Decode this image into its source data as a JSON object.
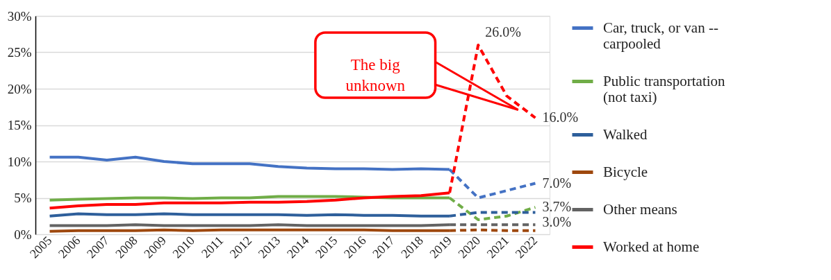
{
  "chart_data": {
    "type": "line",
    "categories": [
      "2005",
      "2006",
      "2007",
      "2008",
      "2009",
      "2010",
      "2011",
      "2012",
      "2013",
      "2014",
      "2015",
      "2016",
      "2017",
      "2018",
      "2019",
      "2020",
      "2021",
      "2022"
    ],
    "ylim": [
      0,
      30
    ],
    "yticks": [
      {
        "value": 0,
        "label": "0%"
      },
      {
        "value": 5,
        "label": "5%"
      },
      {
        "value": 10,
        "label": "10%"
      },
      {
        "value": 15,
        "label": "15%"
      },
      {
        "value": 20,
        "label": "20%"
      },
      {
        "value": 25,
        "label": "25%"
      },
      {
        "value": 30,
        "label": "30%"
      }
    ],
    "grid": "y",
    "legend": "right",
    "line_style": "solid",
    "marker": "none",
    "series": [
      {
        "name": "Car, truck, or van -- carpooled",
        "color": "#4472c4",
        "values": [
          10.6,
          10.6,
          10.2,
          10.6,
          10.0,
          9.7,
          9.7,
          9.7,
          9.3,
          9.1,
          9.0,
          9.0,
          8.9,
          9.0,
          8.9,
          null,
          null,
          null
        ]
      },
      {
        "name": "Public transportation (not taxi)",
        "color": "#70ad47",
        "values": [
          4.7,
          4.8,
          4.9,
          5.0,
          5.0,
          4.9,
          5.0,
          5.0,
          5.2,
          5.2,
          5.2,
          5.1,
          5.0,
          5.0,
          5.0,
          null,
          null,
          null
        ]
      },
      {
        "name": "Walked",
        "color": "#2e5f9b",
        "values": [
          2.5,
          2.8,
          2.7,
          2.7,
          2.8,
          2.7,
          2.7,
          2.7,
          2.7,
          2.6,
          2.7,
          2.6,
          2.6,
          2.5,
          2.5,
          null,
          null,
          null
        ]
      },
      {
        "name": "Bicycle",
        "color": "#9e480e",
        "values": [
          0.4,
          0.5,
          0.5,
          0.5,
          0.6,
          0.5,
          0.6,
          0.6,
          0.6,
          0.6,
          0.6,
          0.6,
          0.5,
          0.5,
          0.5,
          null,
          null,
          null
        ]
      },
      {
        "name": "Other means",
        "color": "#636363",
        "values": [
          1.2,
          1.2,
          1.2,
          1.3,
          1.2,
          1.2,
          1.2,
          1.2,
          1.3,
          1.2,
          1.2,
          1.2,
          1.2,
          1.2,
          1.3,
          null,
          null,
          null
        ]
      },
      {
        "name": "Worked at home",
        "color": "#ff0000",
        "values": [
          3.6,
          3.9,
          4.1,
          4.1,
          4.3,
          4.3,
          4.3,
          4.4,
          4.4,
          4.5,
          4.7,
          5.0,
          5.2,
          5.3,
          5.7,
          null,
          null,
          null
        ]
      },
      {
        "color": "#4472c4",
        "line_style": "dashed",
        "values": [
          null,
          null,
          null,
          null,
          null,
          null,
          null,
          null,
          null,
          null,
          null,
          null,
          null,
          null,
          8.9,
          5.0,
          6.0,
          7.0
        ],
        "value_labels": [
          null,
          null,
          null,
          null,
          null,
          null,
          null,
          null,
          null,
          null,
          null,
          null,
          null,
          null,
          null,
          null,
          null,
          "7.0%"
        ]
      },
      {
        "color": "#70ad47",
        "line_style": "dashed",
        "values": [
          null,
          null,
          null,
          null,
          null,
          null,
          null,
          null,
          null,
          null,
          null,
          null,
          null,
          null,
          5.0,
          2.0,
          2.5,
          3.7
        ],
        "value_labels": [
          null,
          null,
          null,
          null,
          null,
          null,
          null,
          null,
          null,
          null,
          null,
          null,
          null,
          null,
          null,
          null,
          null,
          "3.7%"
        ]
      },
      {
        "color": "#2e5f9b",
        "line_style": "dashed",
        "values": [
          null,
          null,
          null,
          null,
          null,
          null,
          null,
          null,
          null,
          null,
          null,
          null,
          null,
          null,
          2.5,
          3.0,
          3.0,
          3.0
        ],
        "value_labels": [
          null,
          null,
          null,
          null,
          null,
          null,
          null,
          null,
          null,
          null,
          null,
          null,
          null,
          null,
          null,
          null,
          null,
          "3.0%"
        ]
      },
      {
        "color": "#9e480e",
        "line_style": "dashed",
        "values": [
          null,
          null,
          null,
          null,
          null,
          null,
          null,
          null,
          null,
          null,
          null,
          null,
          null,
          null,
          0.5,
          0.6,
          0.5,
          0.5
        ]
      },
      {
        "color": "#636363",
        "line_style": "dashed",
        "values": [
          null,
          null,
          null,
          null,
          null,
          null,
          null,
          null,
          null,
          null,
          null,
          null,
          null,
          null,
          1.3,
          1.3,
          1.3,
          1.3
        ]
      },
      {
        "color": "#ff0000",
        "line_style": "dashed",
        "values": [
          null,
          null,
          null,
          null,
          null,
          null,
          null,
          null,
          null,
          null,
          null,
          null,
          null,
          null,
          5.7,
          26.0,
          19.0,
          16.0
        ],
        "value_labels": [
          null,
          null,
          null,
          null,
          null,
          null,
          null,
          null,
          null,
          null,
          null,
          null,
          null,
          null,
          null,
          "26.0%",
          null,
          "16.0%"
        ]
      }
    ],
    "annotations": [
      "The big unknown"
    ]
  }
}
